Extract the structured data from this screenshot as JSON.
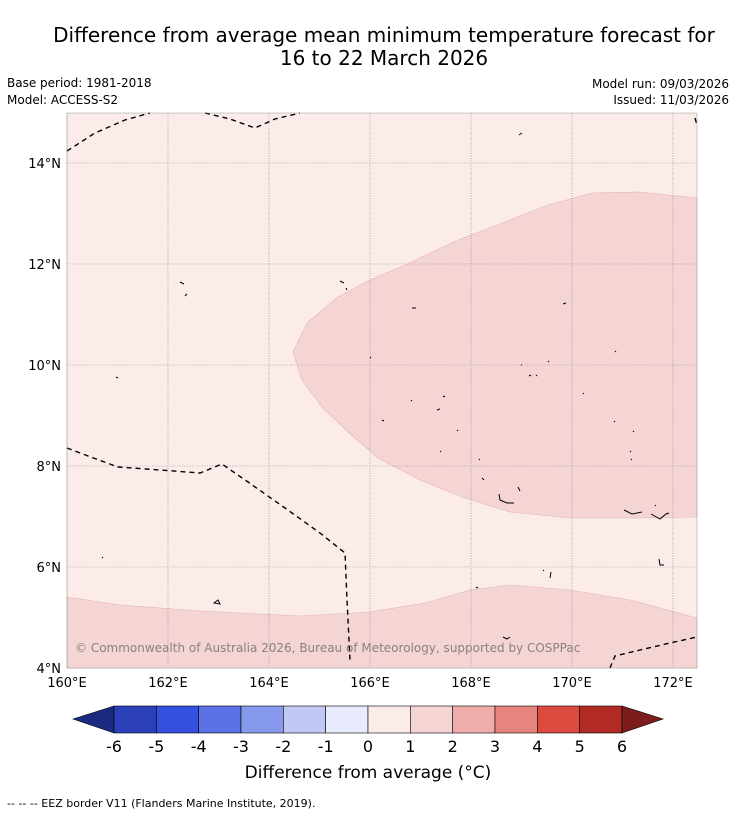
{
  "title_line1": "Difference from average mean minimum temperature forecast for",
  "title_line2": "16 to 22 March 2026",
  "base_period": "Base period: 1981-2018",
  "model": "Model: ACCESS-S2",
  "model_run": "Model run: 09/03/2026",
  "issued": "Issued: 11/03/2026",
  "x_ticks": [
    "160°E",
    "162°E",
    "164°E",
    "166°E",
    "168°E",
    "170°E",
    "172°E"
  ],
  "y_ticks": [
    "14°N",
    "12°N",
    "10°N",
    "8°N",
    "6°N",
    "4°N"
  ],
  "copyright": "© Commonwealth of Australia 2026, Bureau of Meteorology, supported by COSPPac",
  "colorbar": {
    "ticks": [
      "-6",
      "-5",
      "-4",
      "-3",
      "-2",
      "-1",
      "0",
      "1",
      "2",
      "3",
      "4",
      "5",
      "6"
    ],
    "colors": [
      "#1a2a80",
      "#2a3fb8",
      "#3350e0",
      "#5a72e6",
      "#8799ec",
      "#c1c8f4",
      "#e8ebfc",
      "#fbecea",
      "#f4d5d4",
      "#eeadaa",
      "#e6847f",
      "#dc4a40",
      "#b12a24",
      "#7c1c1c"
    ],
    "label": "Difference from average (°C)"
  },
  "legend_note": "--  --  -- EEZ border V11 (Flanders Marine Institute, 2019)."
}
